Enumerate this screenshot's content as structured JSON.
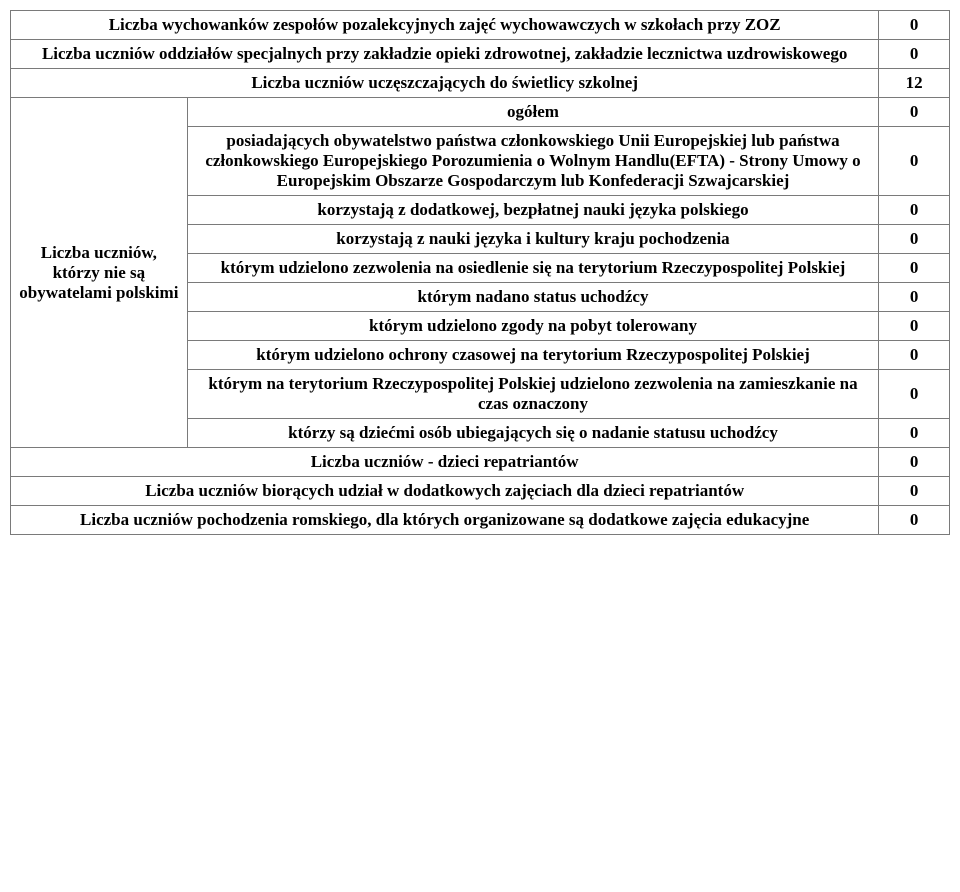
{
  "rows": {
    "r1_label": "Liczba wychowanków zespołów pozalekcyjnych zajęć wychowawczych w szkołach przy ZOZ",
    "r1_value": "0",
    "r2_label": "Liczba uczniów oddziałów specjalnych przy zakładzie opieki zdrowotnej, zakładzie lecznictwa uzdrowiskowego",
    "r2_value": "0",
    "r3_label": "Liczba uczniów uczęszczających do świetlicy szkolnej",
    "r3_value": "12",
    "group_label": "Liczba uczniów, którzy nie są obywatelami polskimi",
    "g1_label": "ogółem",
    "g1_value": "0",
    "g2_label": "posiadających obywatelstwo państwa członkowskiego Unii Europejskiej lub państwa członkowskiego Europejskiego Porozumienia o Wolnym Handlu(EFTA) - Strony Umowy o Europejskim Obszarze Gospodarczym lub Konfederacji Szwajcarskiej",
    "g2_value": "0",
    "g3_label": "korzystają z dodatkowej, bezpłatnej nauki języka polskiego",
    "g3_value": "0",
    "g4_label": "korzystają z nauki języka i kultury kraju pochodzenia",
    "g4_value": "0",
    "g5_label": "którym udzielono zezwolenia na osiedlenie się na terytorium Rzeczypospolitej Polskiej",
    "g5_value": "0",
    "g6_label": "którym nadano status uchodźcy",
    "g6_value": "0",
    "g7_label": "którym udzielono zgody na pobyt tolerowany",
    "g7_value": "0",
    "g8_label": "którym udzielono ochrony czasowej na terytorium Rzeczypospolitej Polskiej",
    "g8_value": "0",
    "g9_label": "którym na terytorium Rzeczypospolitej Polskiej udzielono zezwolenia na zamieszkanie na czas oznaczony",
    "g9_value": "0",
    "g10_label": "którzy są dziećmi osób ubiegających się o nadanie statusu uchodźcy",
    "g10_value": "0",
    "r4_label": "Liczba uczniów - dzieci repatriantów",
    "r4_value": "0",
    "r5_label": "Liczba uczniów biorących udział w dodatkowych zajęciach dla dzieci repatriantów",
    "r5_value": "0",
    "r6_label": "Liczba uczniów pochodzenia romskiego, dla których organizowane są dodatkowe zajęcia edukacyjne",
    "r6_value": "0"
  }
}
